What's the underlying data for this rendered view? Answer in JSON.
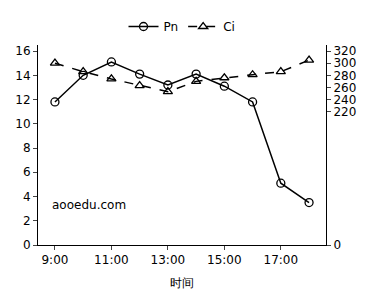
{
  "chart_data": {
    "type": "line",
    "x_label": "时间",
    "annotations": [
      "aooedu.com"
    ],
    "categories": [
      "9:00",
      null,
      "11:00",
      null,
      "13:00",
      null,
      "15:00",
      null,
      "17:00",
      null
    ],
    "series": [
      {
        "name": "Pn",
        "color": "#000000",
        "marker": "circle-open",
        "line_style": "solid",
        "values": [
          11.8,
          14.0,
          15.1,
          14.1,
          13.2,
          14.1,
          13.1,
          11.8,
          5.1,
          3.5
        ]
      },
      {
        "name": "Ci",
        "color": "#000000",
        "marker": "triangle-up-open",
        "line_style": "dash",
        "axis": "y2",
        "values": [
          300,
          286,
          274,
          263,
          253,
          270,
          276,
          281,
          286,
          305
        ]
      }
    ],
    "ylim": [
      0,
      16.5
    ],
    "yticks": [
      0,
      2,
      4,
      6,
      8,
      10,
      12,
      14,
      16
    ],
    "y2lim": [
      0,
      330
    ],
    "y2ticks": [
      0,
      220,
      240,
      260,
      280,
      300,
      320
    ],
    "grid": false,
    "legend": "top"
  }
}
